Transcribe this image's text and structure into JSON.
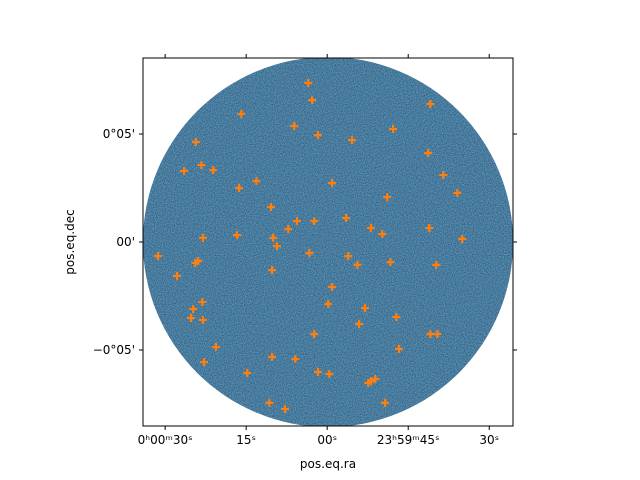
{
  "chart_data": {
    "type": "scatter",
    "xlabel": "pos.eq.ra",
    "ylabel": "pos.eq.dec",
    "color": "#ff7f0e",
    "xlim": [
      34.1,
      -34.4
    ],
    "ylim": [
      -8.52,
      8.52
    ],
    "xticks": [
      {
        "value": 30,
        "label": "0ʰ00ᵐ30ˢ"
      },
      {
        "value": 15,
        "label": "15ˢ"
      },
      {
        "value": 0,
        "label": "00ˢ"
      },
      {
        "value": -15,
        "label": "23ʰ59ᵐ45ˢ"
      },
      {
        "value": -30,
        "label": "30ˢ"
      }
    ],
    "yticks": [
      {
        "value": 5,
        "label": "0°05'"
      },
      {
        "value": 0,
        "label": "00'"
      },
      {
        "value": -5,
        "label": "−0°05'"
      }
    ],
    "x": [
      3.5,
      2.8,
      -19.1,
      15.9,
      6.1,
      -12.2,
      1.7,
      24.3,
      -4.6,
      -18.7,
      23.3,
      26.5,
      21.1,
      -21.5,
      13.1,
      16.3,
      -0.9,
      -24.1,
      -11.1,
      10.4,
      5.6,
      2.4,
      -3.5,
      7.2,
      -8.1,
      -10.2,
      -18.9,
      16.7,
      23.0,
      10.0,
      -25.0,
      9.3,
      31.3,
      3.3,
      -3.9,
      23.9,
      24.4,
      -5.6,
      -11.7,
      -20.2,
      10.2,
      27.8,
      -0.9,
      23.1,
      -0.2,
      24.8,
      -7.0,
      25.2,
      23.0,
      -12.8,
      -5.9,
      2.4,
      -19.1,
      -20.4,
      20.6,
      -13.3,
      10.2,
      5.9,
      22.8,
      14.8,
      1.7,
      -0.4,
      -8.9,
      -8.1,
      -7.6,
      10.7,
      -10.7,
      7.8
    ],
    "values": [
      7.36,
      6.57,
      6.39,
      5.93,
      5.37,
      5.23,
      4.95,
      4.63,
      4.72,
      4.12,
      3.56,
      3.29,
      3.33,
      3.1,
      2.82,
      2.5,
      2.73,
      2.27,
      2.08,
      1.62,
      0.97,
      0.97,
      1.11,
      0.6,
      0.65,
      0.37,
      0.65,
      0.32,
      0.19,
      0.19,
      0.14,
      -0.19,
      -0.65,
      -0.51,
      -0.65,
      -0.88,
      -0.97,
      -1.06,
      -0.93,
      -1.06,
      -1.3,
      -1.57,
      -2.08,
      -2.78,
      -2.87,
      -3.1,
      -3.06,
      -3.52,
      -3.61,
      -3.47,
      -3.8,
      -4.26,
      -4.26,
      -4.26,
      -4.86,
      -4.95,
      -5.32,
      -5.42,
      -5.56,
      -6.06,
      -6.02,
      -6.11,
      -6.34,
      -6.44,
      -6.53,
      -7.45,
      -7.45,
      -7.73
    ]
  }
}
